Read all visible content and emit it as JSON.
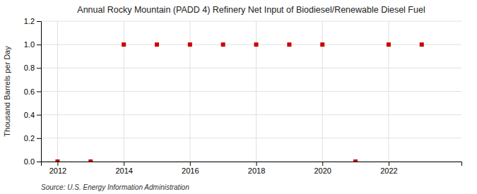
{
  "chart_data": {
    "type": "scatter",
    "title": "Annual Rocky Mountain (PADD 4) Refinery Net Input of Biodiesel/Renewable Diesel Fuel",
    "ylabel": "Thousand Barrels per Day",
    "annotations": [
      "Source: U.S. Energy Information Administration"
    ],
    "x": [
      2012,
      2013,
      2014,
      2015,
      2016,
      2017,
      2018,
      2019,
      2020,
      2021,
      2022,
      2023
    ],
    "values": [
      0.0,
      0.0,
      1.0,
      1.0,
      1.0,
      1.0,
      1.0,
      1.0,
      1.0,
      0.0,
      1.0,
      1.0
    ],
    "color": "#cc0000",
    "marker": "square",
    "xlim": [
      2011.5,
      2024.2
    ],
    "ylim": [
      0.0,
      1.2
    ],
    "xticks": [
      2012,
      2014,
      2016,
      2018,
      2020,
      2022
    ],
    "yticks": [
      {
        "value": 0,
        "label": "0.0"
      },
      0.2,
      0.4,
      0.6,
      0.8,
      {
        "value": 1,
        "label": "1.0"
      },
      1.2
    ],
    "grid": true
  }
}
